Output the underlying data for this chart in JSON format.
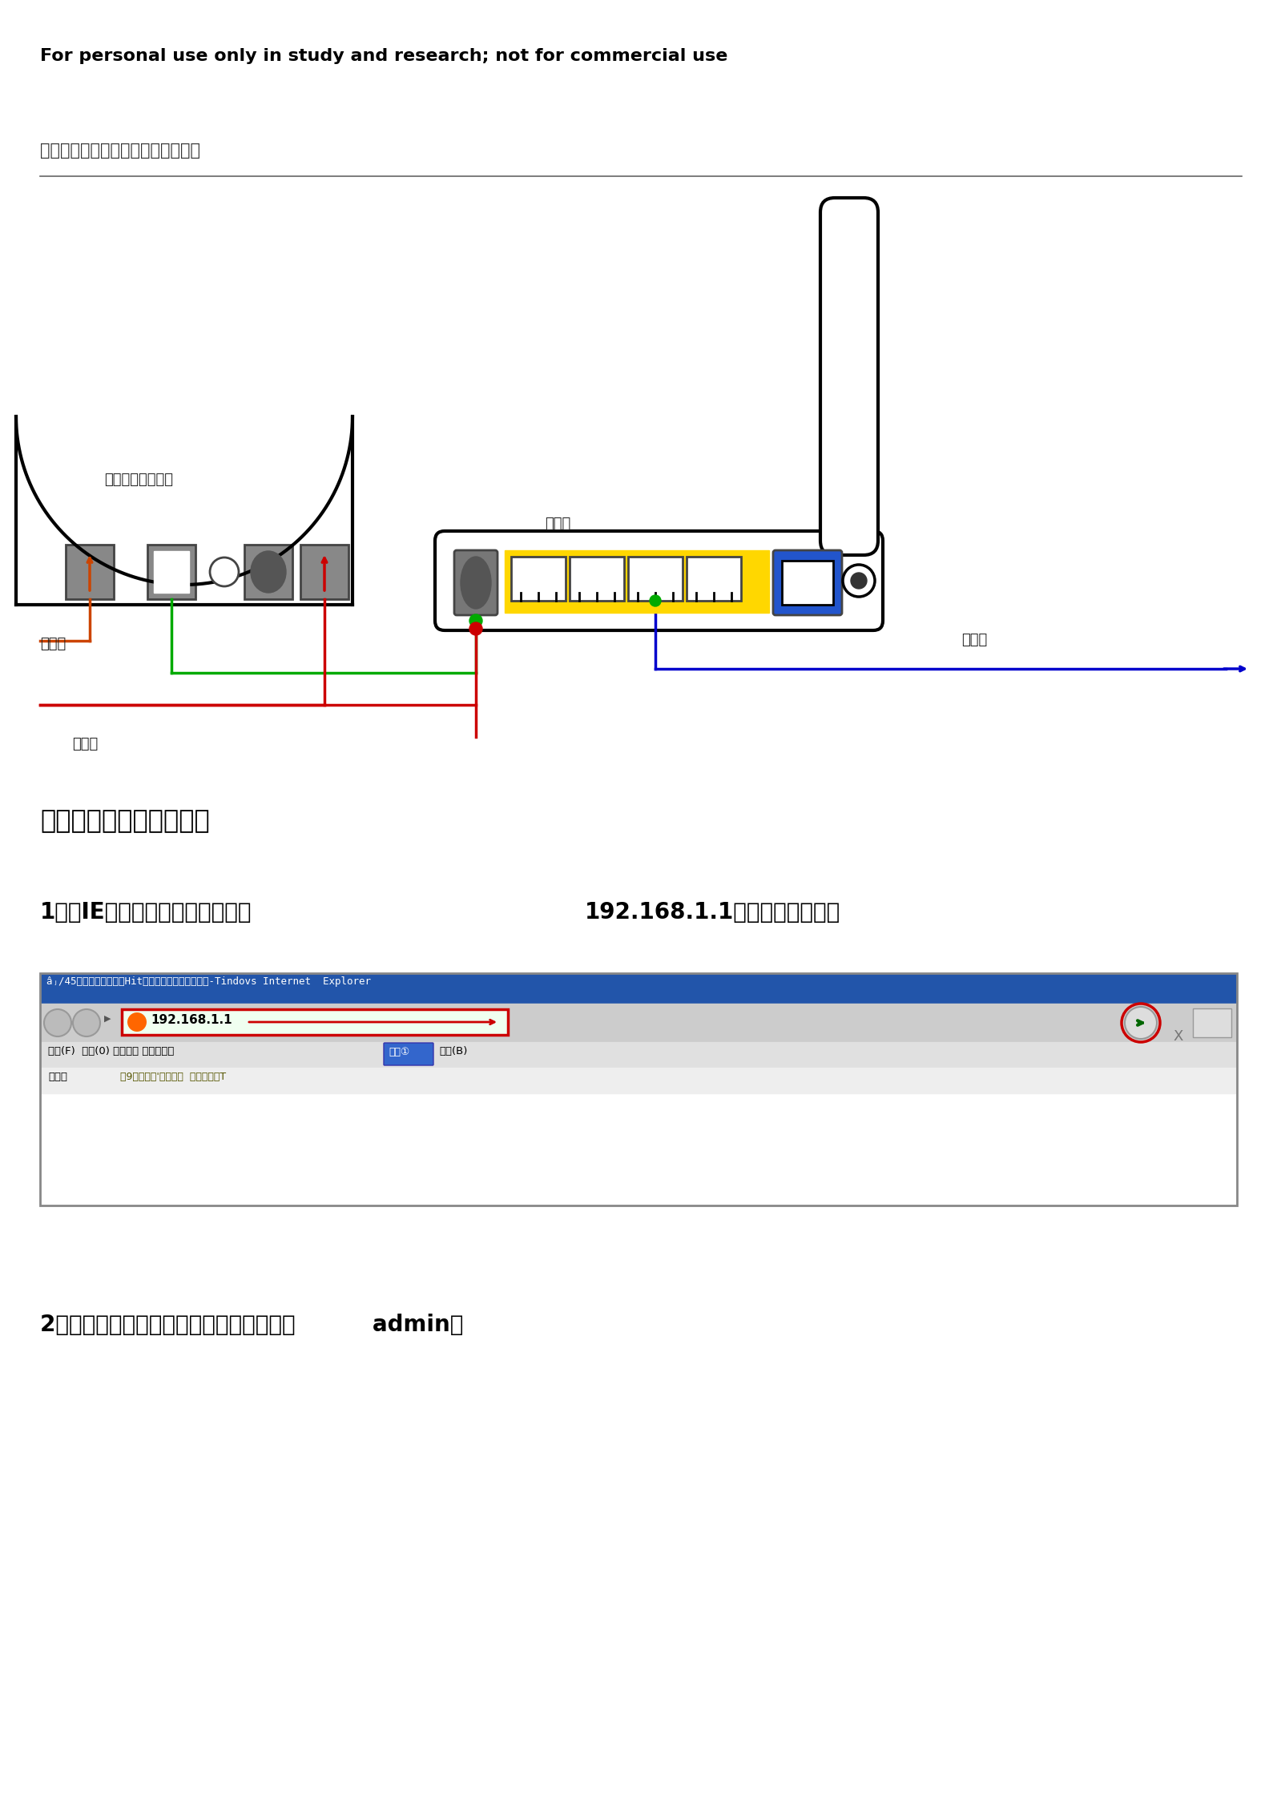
{
  "bg_color": "#ffffff",
  "header_text": "For personal use only in study and research; not for commercial use",
  "section1_title": "调制解调器（猫）、路由器的连接：",
  "modem_label": "调制解调器（猫）",
  "router_label": "路由器",
  "phone_line_label": "电话线",
  "power_line_label": "电源线",
  "connect_pc_label": "接电脑",
  "section2_title": "路由器及电脑上网设置：",
  "step1_prefix": "1进入IE浏览器，在地址栏中输入",
  "step1_ip": "192.168.1.1，然后进入路由器",
  "browser_title": "âⱼ/45网址导航一我的个Hit主页一中国量好的网址站-Tindovs Internet  Explorer",
  "browser_url_text": "192.168.1.1",
  "browser_menu_left": "文件(F)  编辑(0) 查看世） 收藏夹他）",
  "browser_tool_text": "工具①",
  "browser_help_text": "帮助(B)",
  "browser_fav_label": "收藏夹",
  "browser_fav_links": "令9建连网站'图百度崔  网见快讯库T",
  "step2_text": "2输入账号密码进入（账号密码一般都为：          admin）"
}
